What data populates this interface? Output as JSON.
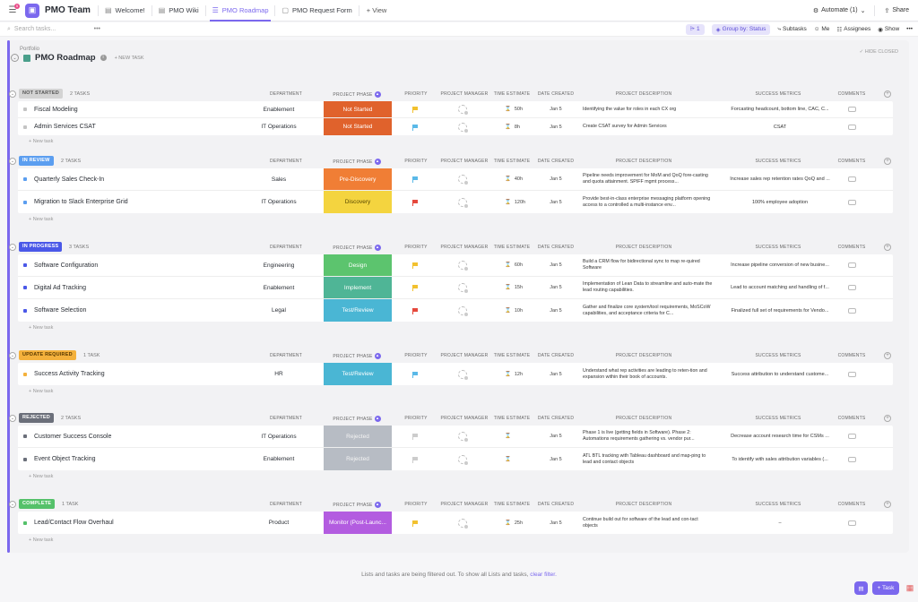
{
  "topbar": {
    "notif_count": "5",
    "space_name": "PMO Team",
    "tabs": [
      {
        "label": "Welcome!",
        "icon": "doc-icon"
      },
      {
        "label": "PMO Wiki",
        "icon": "doc-icon"
      },
      {
        "label": "PMO Roadmap",
        "icon": "list-icon"
      },
      {
        "label": "PMO Request Form",
        "icon": "form-icon"
      }
    ],
    "add_view": "+ View",
    "automate": "Automate (1)",
    "share": "Share"
  },
  "toolbar": {
    "search_placeholder": "Search tasks...",
    "filter_count": "1",
    "group_by": "Group by: Status",
    "subtasks": "Subtasks",
    "me": "Me",
    "assignees": "Assignees",
    "show": "Show"
  },
  "list": {
    "breadcrumb": "Portfolio",
    "title": "PMO Roadmap",
    "new_task": "+ NEW TASK",
    "hide_closed": "HIDE CLOSED"
  },
  "columns": {
    "department": "DEPARTMENT",
    "phase": "PROJECT PHASE",
    "priority": "PRIORITY",
    "manager": "PROJECT MANAGER",
    "time": "TIME ESTIMATE",
    "date": "DATE CREATED",
    "desc": "PROJECT DESCRIPTION",
    "metrics": "SUCCESS METRICS",
    "comments": "COMMENTS",
    "new_task_label": "+ New task"
  },
  "groups": [
    {
      "status": "NOT STARTED",
      "count": "2 TASKS",
      "color": "#d3d3d3",
      "text_color": "#555555",
      "tasks": [
        {
          "name": "Fiscal Modeling",
          "department": "Enablement",
          "phase": "Not Started",
          "phase_color": "#e0622c",
          "flag": "#f2c12e",
          "time": "50h",
          "date": "Jan 5",
          "desc": "Identifying the value for roles in each CX org",
          "metric": "Forcasting headcount, bottom line, CAC, C..."
        },
        {
          "name": "Admin Services CSAT",
          "department": "IT Operations",
          "phase": "Not Started",
          "phase_color": "#e0622c",
          "flag": "#5ab9e8",
          "time": "8h",
          "date": "Jan 5",
          "desc": "Create CSAT survey for Admin Services",
          "metric": "CSAT"
        }
      ]
    },
    {
      "status": "IN REVIEW",
      "count": "2 TASKS",
      "color": "#5b9ef0",
      "text_color": "#ffffff",
      "tasks": [
        {
          "name": "Quarterly Sales Check-In",
          "department": "Sales",
          "phase": "Pre-Discovery",
          "phase_color": "#f07e35",
          "flag": "#5ab9e8",
          "time": "40h",
          "date": "Jan 5",
          "desc": "Pipeline needs improvement for MoM and QoQ fore-casting and quota attainment.  SPIFF mgmt process...",
          "metric": "Increase sales rep retention rates QoQ and ..."
        },
        {
          "name": "Migration to Slack Enterprise Grid",
          "department": "IT Operations",
          "phase": "Discovery",
          "phase_color": "#f4d43f",
          "phase_text": "#5a4a00",
          "flag": "#e5483c",
          "time": "120h",
          "date": "Jan 5",
          "desc": "Provide best-in-class enterprise messaging platform opening access to a controlled a multi-instance env...",
          "metric": "100% employee adoption"
        }
      ]
    },
    {
      "status": "IN PROGRESS",
      "count": "3 TASKS",
      "color": "#4a58e8",
      "text_color": "#ffffff",
      "tasks": [
        {
          "name": "Software Configuration",
          "department": "Engineering",
          "phase": "Design",
          "phase_color": "#5cc46e",
          "flag": "#f2c12e",
          "time": "60h",
          "date": "Jan 5",
          "desc": "Build a CRM flow for bidirectional sync to map re-quired Software",
          "metric": "Increase pipeline conversion of new busine..."
        },
        {
          "name": "Digital Ad Tracking",
          "department": "Enablement",
          "phase": "Implement",
          "phase_color": "#4fb596",
          "flag": "#f2c12e",
          "time": "15h",
          "date": "Jan 5",
          "desc": "Implementation of Lean Data to streamline and auto-mate the lead routing capabilities.",
          "metric": "Lead to account matching and handling of f..."
        },
        {
          "name": "Software Selection",
          "department": "Legal",
          "phase": "Test/Review",
          "phase_color": "#4ab6d4",
          "flag": "#e5483c",
          "time": "10h",
          "date": "Jan 5",
          "desc": "Gather and finalize core system/tool requirements, MoSCoW capabilities, and acceptance criteria for C...",
          "metric": "Finalized full set of requirements for Vendo..."
        }
      ]
    },
    {
      "status": "UPDATE REQUIRED",
      "count": "1 TASK",
      "color": "#f4b13c",
      "text_color": "#5a3a00",
      "tasks": [
        {
          "name": "Success Activity Tracking",
          "department": "HR",
          "phase": "Test/Review",
          "phase_color": "#4ab6d4",
          "flag": "#5ab9e8",
          "time": "12h",
          "date": "Jan 5",
          "desc": " Understand what rep activities are leading to reten-tion and expansion within their book of accounts.",
          "metric": "Success attribution to understand custome..."
        }
      ]
    },
    {
      "status": "REJECTED",
      "count": "2 TASKS",
      "color": "#6b6f7a",
      "text_color": "#ffffff",
      "tasks": [
        {
          "name": "Customer Success Console",
          "department": "IT Operations",
          "phase": "Rejected",
          "phase_color": "#b7bcc4",
          "flag": "#cccccc",
          "time": "",
          "date": "Jan 5",
          "desc": "Phase 1 is live (getting fields in Software).  Phase 2: Automations requirements gathering vs. vendor pur...",
          "metric": "Decrease account research time for CSMs ..."
        },
        {
          "name": "Event Object Tracking",
          "department": "Enablement",
          "phase": "Rejected",
          "phase_color": "#b7bcc4",
          "flag": "#cccccc",
          "time": "",
          "date": "Jan 5",
          "desc": "ATL BTL tracking with Tableau dashboard and map-ping to lead and contact objects",
          "metric": "To identify with sales attribution variables (..."
        }
      ]
    },
    {
      "status": "COMPLETE",
      "count": "1 TASK",
      "color": "#55c16a",
      "text_color": "#ffffff",
      "tasks": [
        {
          "name": "Lead/Contact Flow Overhaul",
          "department": "Product",
          "phase": "Monitor (Post-Launc...",
          "phase_color": "#b35ce0",
          "flag": "#f2c12e",
          "time": "25h",
          "date": "Jan 5",
          "desc": "Continue build out for software of the lead and con-tact objects",
          "metric": "–"
        }
      ]
    }
  ],
  "footer": {
    "message": "Lists and tasks are being filtered out. To show all Lists and tasks,",
    "link": "clear filter.",
    "task_button": "+ Task"
  }
}
